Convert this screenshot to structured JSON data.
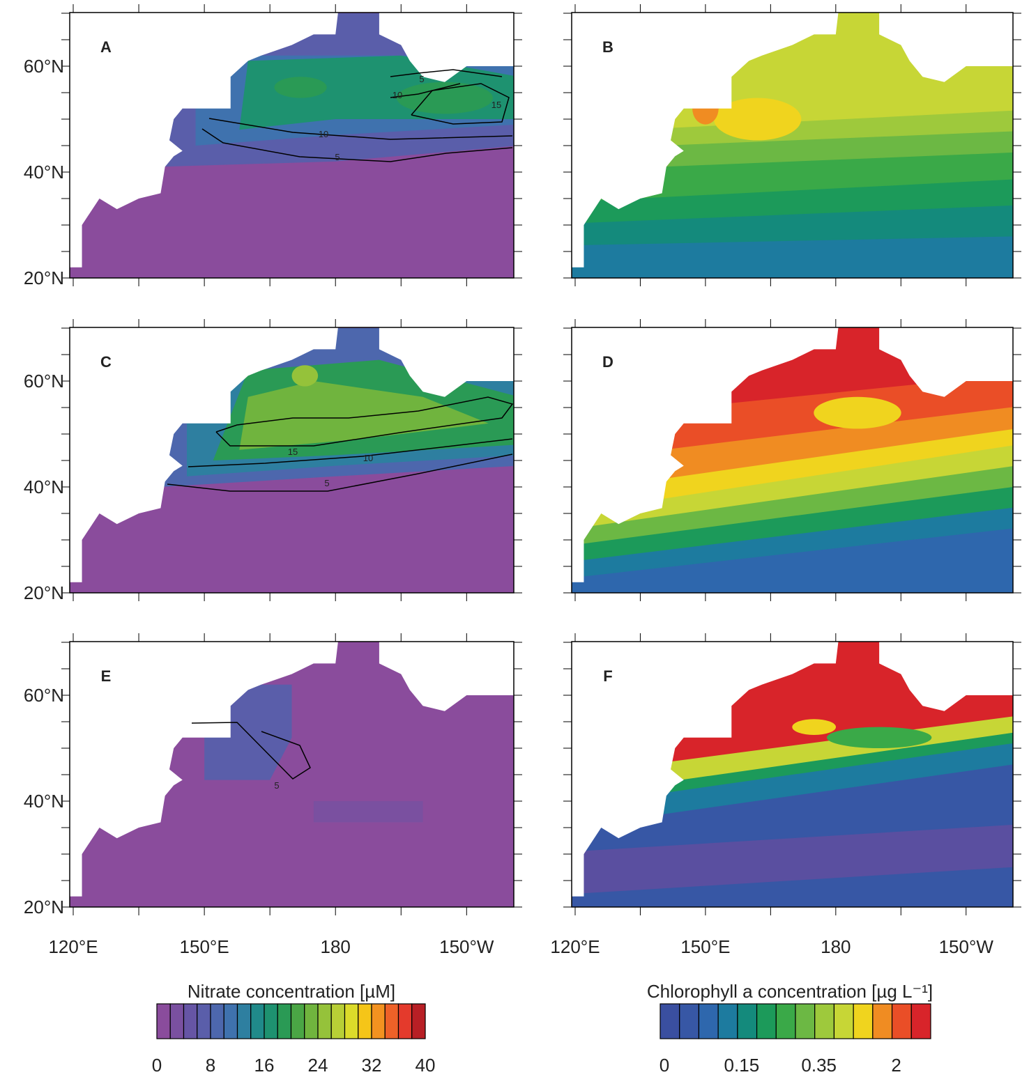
{
  "panels": [
    {
      "label": "A",
      "contour_labels": [
        "5",
        "10",
        "15",
        "10",
        "5"
      ]
    },
    {
      "label": "B",
      "contour_labels": []
    },
    {
      "label": "C",
      "contour_labels": [
        "15",
        "10",
        "5"
      ]
    },
    {
      "label": "D",
      "contour_labels": []
    },
    {
      "label": "E",
      "contour_labels": [
        "5"
      ]
    },
    {
      "label": "F",
      "contour_labels": []
    }
  ],
  "y_tick_labels": [
    "60°N",
    "40°N",
    "20°N"
  ],
  "x_tick_labels": [
    "120°E",
    "150°E",
    "180",
    "150°W"
  ],
  "colorbars": [
    {
      "title": "Nitrate concentration [µM]",
      "tick_labels": [
        "0",
        "8",
        "16",
        "24",
        "32",
        "40"
      ]
    },
    {
      "title": "Chlorophyll a concentration [µg L⁻¹]",
      "tick_labels": [
        "0",
        "0.15",
        "0.35",
        "2"
      ]
    }
  ]
}
